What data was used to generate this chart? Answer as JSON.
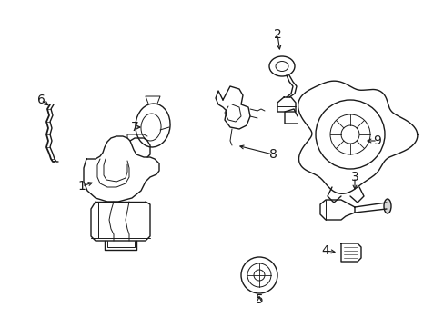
{
  "bg_color": "#ffffff",
  "line_color": "#1a1a1a",
  "figsize": [
    4.89,
    3.6
  ],
  "dpi": 100,
  "border_color": "#cccccc"
}
